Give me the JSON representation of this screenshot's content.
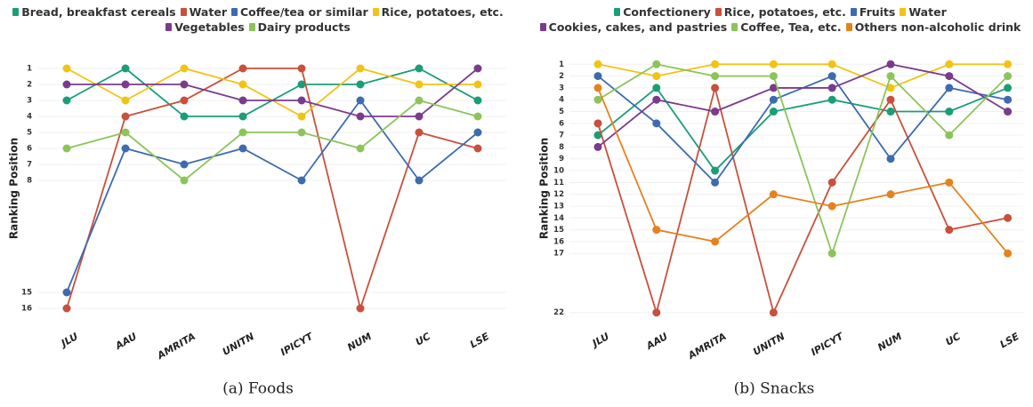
{
  "chart_data": [
    {
      "type": "line",
      "caption": "(a) Foods",
      "y_label": "Ranking Position",
      "categories": [
        "JLU",
        "AAU",
        "AMRITA",
        "UNITN",
        "IPICYT",
        "NUM",
        "UC",
        "LSE"
      ],
      "ylim": [
        0,
        17
      ],
      "y_reversed": true,
      "yticks": [
        1,
        2,
        3,
        4,
        5,
        6,
        7,
        8,
        15,
        16
      ],
      "grid": true,
      "series": [
        {
          "name": "Bread, breakfast cereals",
          "color": "#1a9e77",
          "values": [
            3,
            1,
            4,
            4,
            2,
            2,
            1,
            3
          ]
        },
        {
          "name": "Water",
          "color": "#c9503c",
          "values": [
            16,
            4,
            3,
            1,
            1,
            16,
            5,
            6
          ]
        },
        {
          "name": "Coffee/tea or similar",
          "color": "#3d6bb0",
          "values": [
            15,
            6,
            7,
            6,
            8,
            3,
            8,
            5
          ]
        },
        {
          "name": "Rice, potatoes, etc.",
          "color": "#f2c314",
          "values": [
            1,
            3,
            1,
            2,
            4,
            1,
            2,
            2
          ]
        },
        {
          "name": "Vegetables",
          "color": "#7b3b8c",
          "values": [
            2,
            2,
            2,
            3,
            3,
            4,
            4,
            1
          ]
        },
        {
          "name": "Dairy products",
          "color": "#8cc45a",
          "values": [
            6,
            5,
            8,
            5,
            5,
            6,
            3,
            4
          ]
        }
      ]
    },
    {
      "type": "line",
      "caption": "(b) Snacks",
      "y_label": "Ranking Position",
      "categories": [
        "JLU",
        "AAU",
        "AMRITA",
        "UNITN",
        "IPICYT",
        "NUM",
        "UC",
        "LSE"
      ],
      "ylim": [
        0,
        23
      ],
      "y_reversed": true,
      "yticks": [
        1,
        2,
        3,
        4,
        5,
        6,
        7,
        8,
        9,
        10,
        11,
        12,
        13,
        14,
        15,
        16,
        17,
        22
      ],
      "grid": true,
      "series": [
        {
          "name": "Confectionery",
          "color": "#1a9e77",
          "values": [
            7,
            3,
            10,
            5,
            4,
            5,
            5,
            3
          ]
        },
        {
          "name": "Rice, potatoes, etc.",
          "color": "#c9503c",
          "values": [
            6,
            22,
            3,
            22,
            11,
            4,
            15,
            14
          ]
        },
        {
          "name": "Fruits",
          "color": "#3d6bb0",
          "values": [
            2,
            6,
            11,
            4,
            2,
            9,
            3,
            4
          ]
        },
        {
          "name": "Water",
          "color": "#f2c314",
          "values": [
            1,
            2,
            1,
            1,
            1,
            3,
            1,
            1
          ]
        },
        {
          "name": "Cookies, cakes, and pastries",
          "color": "#7b3b8c",
          "values": [
            8,
            4,
            5,
            3,
            3,
            1,
            2,
            5
          ]
        },
        {
          "name": "Coffee, Tea, etc.",
          "color": "#8cc45a",
          "values": [
            4,
            1,
            2,
            2,
            17,
            2,
            7,
            2
          ]
        },
        {
          "name": "Others non-alcoholic drink",
          "color": "#e6821e",
          "values": [
            3,
            15,
            16,
            12,
            13,
            12,
            11,
            17
          ]
        }
      ]
    }
  ]
}
